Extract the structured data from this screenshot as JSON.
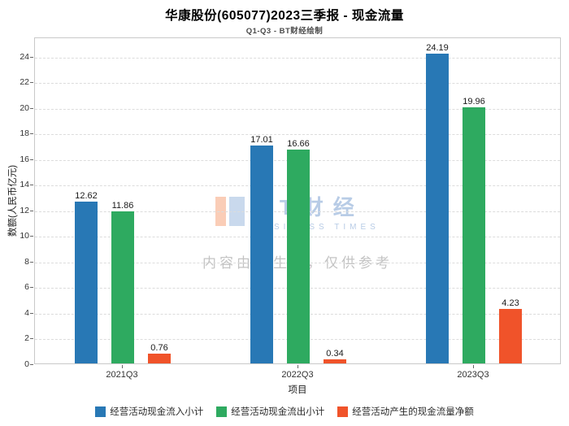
{
  "header": {
    "title": "华康股份(605077)2023三季报 - 现金流量",
    "subtitle": "Q1-Q3 - BT财经绘制"
  },
  "watermark": {
    "logo_text": "BT财经",
    "logo_sub": "BUSINESS TIMES",
    "disclaimer": "内容由AI生成，仅供参考"
  },
  "chart_data": {
    "type": "bar",
    "title": "华康股份(605077)2023三季报 - 现金流量",
    "subtitle": "Q1-Q3 - BT财经绘制",
    "categories": [
      "2021Q3",
      "2022Q3",
      "2023Q3"
    ],
    "series": [
      {
        "name": "经营活动现金流入小计",
        "color": "#2878b5",
        "values": [
          12.62,
          17.01,
          24.19
        ]
      },
      {
        "name": "经营活动现金流出小计",
        "color": "#2eaa60",
        "values": [
          11.86,
          16.66,
          19.96
        ]
      },
      {
        "name": "经营活动产生的现金流量净额",
        "color": "#f0532a",
        "values": [
          0.76,
          0.34,
          4.23
        ]
      }
    ],
    "xlabel": "项目",
    "ylabel": "数额(人民币亿元)",
    "ylim": [
      0,
      25.5
    ],
    "yticks": [
      0,
      2,
      4,
      6,
      8,
      10,
      12,
      14,
      16,
      18,
      20,
      22,
      24
    ],
    "grid": true,
    "grid_style": "dashed",
    "legend_position": "bottom"
  }
}
